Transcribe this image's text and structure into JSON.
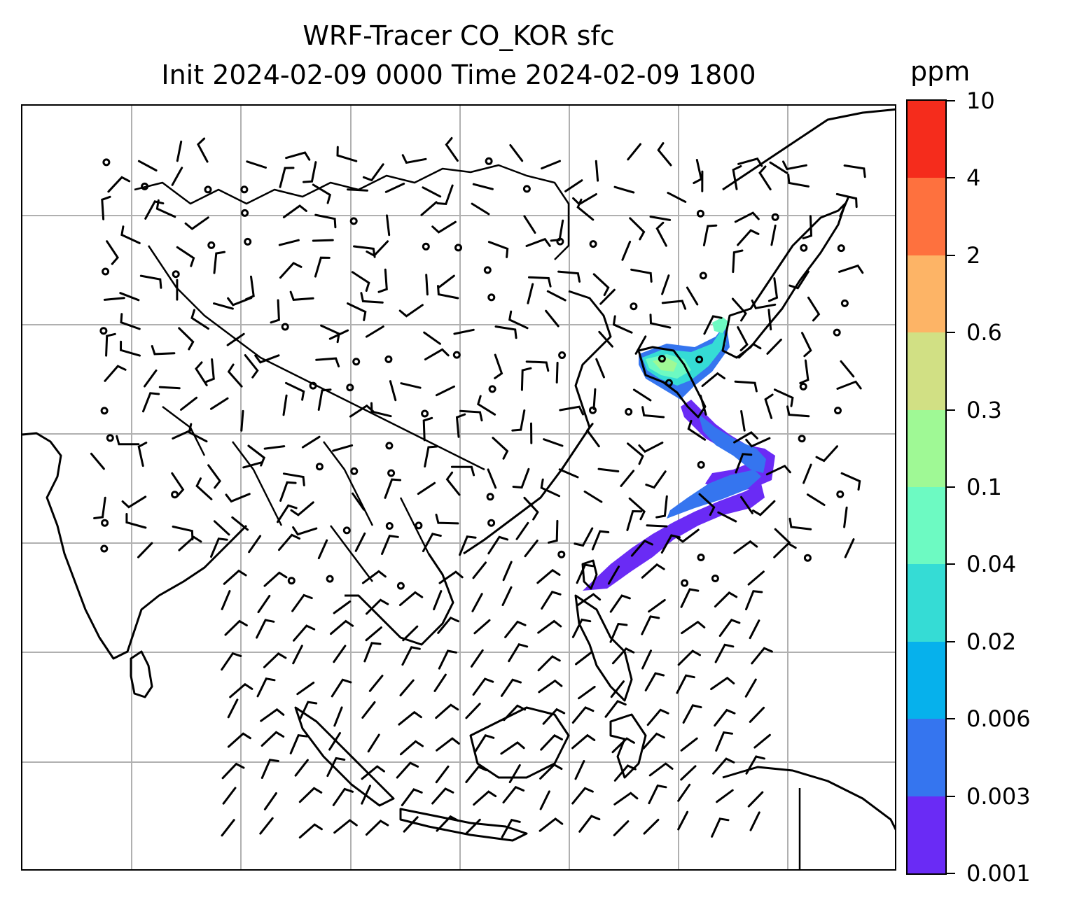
{
  "title": {
    "line1": "WRF-Tracer CO_KOR sfc",
    "line2": "Init 2024-02-09 0000 Time 2024-02-09 1800"
  },
  "colorbar": {
    "unit": "ppm",
    "ticks": [
      "0.001",
      "0.003",
      "0.006",
      "0.02",
      "0.04",
      "0.1",
      "0.3",
      "0.6",
      "2",
      "4",
      "10"
    ],
    "colors": [
      "#6a2bf5",
      "#3575ef",
      "#06b1ec",
      "#35dcd5",
      "#6dfac2",
      "#9ff995",
      "#d1e084",
      "#fdb466",
      "#fe713e",
      "#f52c1c"
    ]
  },
  "map": {
    "gridlines": true,
    "coastline_color": "#000000",
    "grid_color": "#b0b0b0",
    "wind_barbs": true,
    "tracer_plume": {
      "region": "Korean Peninsula southward over East China Sea toward Taiwan",
      "colors": [
        "#6a2bf5",
        "#3575ef",
        "#35dcd5",
        "#6dfac2",
        "#9ff995"
      ]
    }
  }
}
